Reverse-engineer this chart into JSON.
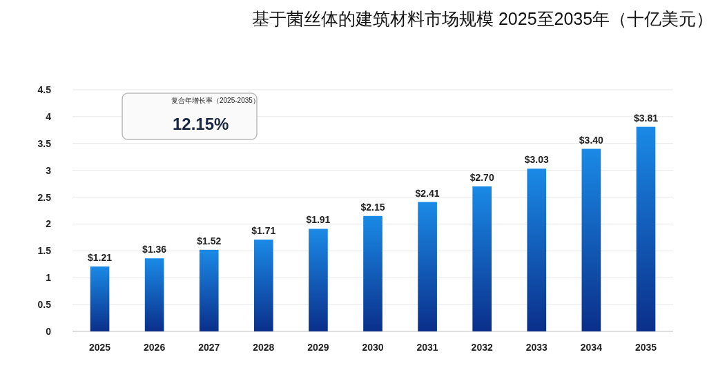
{
  "chart_data": {
    "type": "bar",
    "title": "基于菌丝体的建筑材料市场规模 2025至2035年（十亿美元）",
    "categories": [
      "2025",
      "2026",
      "2027",
      "2028",
      "2029",
      "2030",
      "2031",
      "2032",
      "2033",
      "2034",
      "2035"
    ],
    "values": [
      1.21,
      1.36,
      1.52,
      1.71,
      1.91,
      2.15,
      2.41,
      2.7,
      3.03,
      3.4,
      3.81
    ],
    "value_labels": [
      "$1.21",
      "$1.36",
      "$1.52",
      "$1.71",
      "$1.91",
      "$2.15",
      "$2.41",
      "$2.70",
      "$3.03",
      "$3.40",
      "$3.81"
    ],
    "color": "#1a8ae6",
    "ylim": [
      0,
      4.5
    ],
    "yticks": [
      0,
      0.5,
      1,
      1.5,
      2,
      2.5,
      3,
      3.5,
      4,
      4.5
    ],
    "grid": "y",
    "annotations": [
      "复合年增长率（2025-2035）",
      "12.15%"
    ]
  }
}
